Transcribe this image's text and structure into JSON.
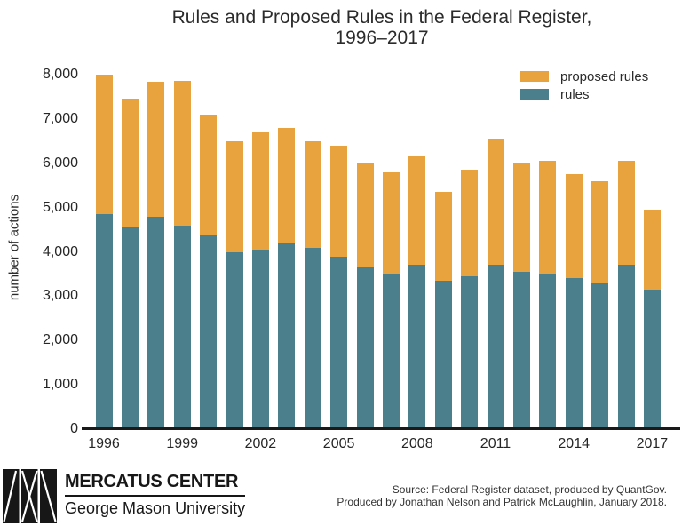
{
  "title": {
    "line1": "Rules and Proposed Rules in the Federal Register,",
    "line2": "1996–2017"
  },
  "legend": {
    "items": [
      {
        "label": "proposed rules",
        "color": "#E9A33E"
      },
      {
        "label": "rules",
        "color": "#4B7F8B"
      }
    ]
  },
  "chart_data": {
    "type": "bar",
    "stacked": true,
    "title": "Rules and Proposed Rules in the Federal Register, 1996–2017",
    "xlabel": "",
    "ylabel": "number of actions",
    "ylim": [
      0,
      8000
    ],
    "yticks": [
      0,
      1000,
      2000,
      3000,
      4000,
      5000,
      6000,
      7000,
      8000
    ],
    "xticks": [
      1996,
      1999,
      2002,
      2005,
      2008,
      2011,
      2014,
      2017
    ],
    "grid": false,
    "legend_position": "top-right",
    "categories": [
      1996,
      1997,
      1998,
      1999,
      2000,
      2001,
      2002,
      2003,
      2004,
      2005,
      2006,
      2007,
      2008,
      2009,
      2010,
      2011,
      2012,
      2013,
      2014,
      2015,
      2016,
      2017
    ],
    "series": [
      {
        "name": "rules",
        "color": "#4B7F8B",
        "values": [
          4850,
          4550,
          4800,
          4600,
          4400,
          4000,
          4050,
          4200,
          4100,
          3900,
          3650,
          3500,
          3700,
          3350,
          3450,
          3700,
          3550,
          3500,
          3400,
          3300,
          3700,
          3150
        ]
      },
      {
        "name": "proposed rules",
        "color": "#E9A33E",
        "values": [
          3150,
          2900,
          3050,
          3250,
          2700,
          2500,
          2650,
          2600,
          2400,
          2500,
          2350,
          2300,
          2450,
          2000,
          2400,
          2850,
          2450,
          2550,
          2350,
          2300,
          2350,
          1800
        ]
      }
    ]
  },
  "footer": {
    "brand_name": "MERCATUS CENTER",
    "brand_subtitle": "George Mason University",
    "source_line1": "Source: Federal Register dataset, produced by QuantGov.",
    "source_line2": "Produced by Jonathan Nelson and Patrick McLaughlin, January 2018."
  }
}
